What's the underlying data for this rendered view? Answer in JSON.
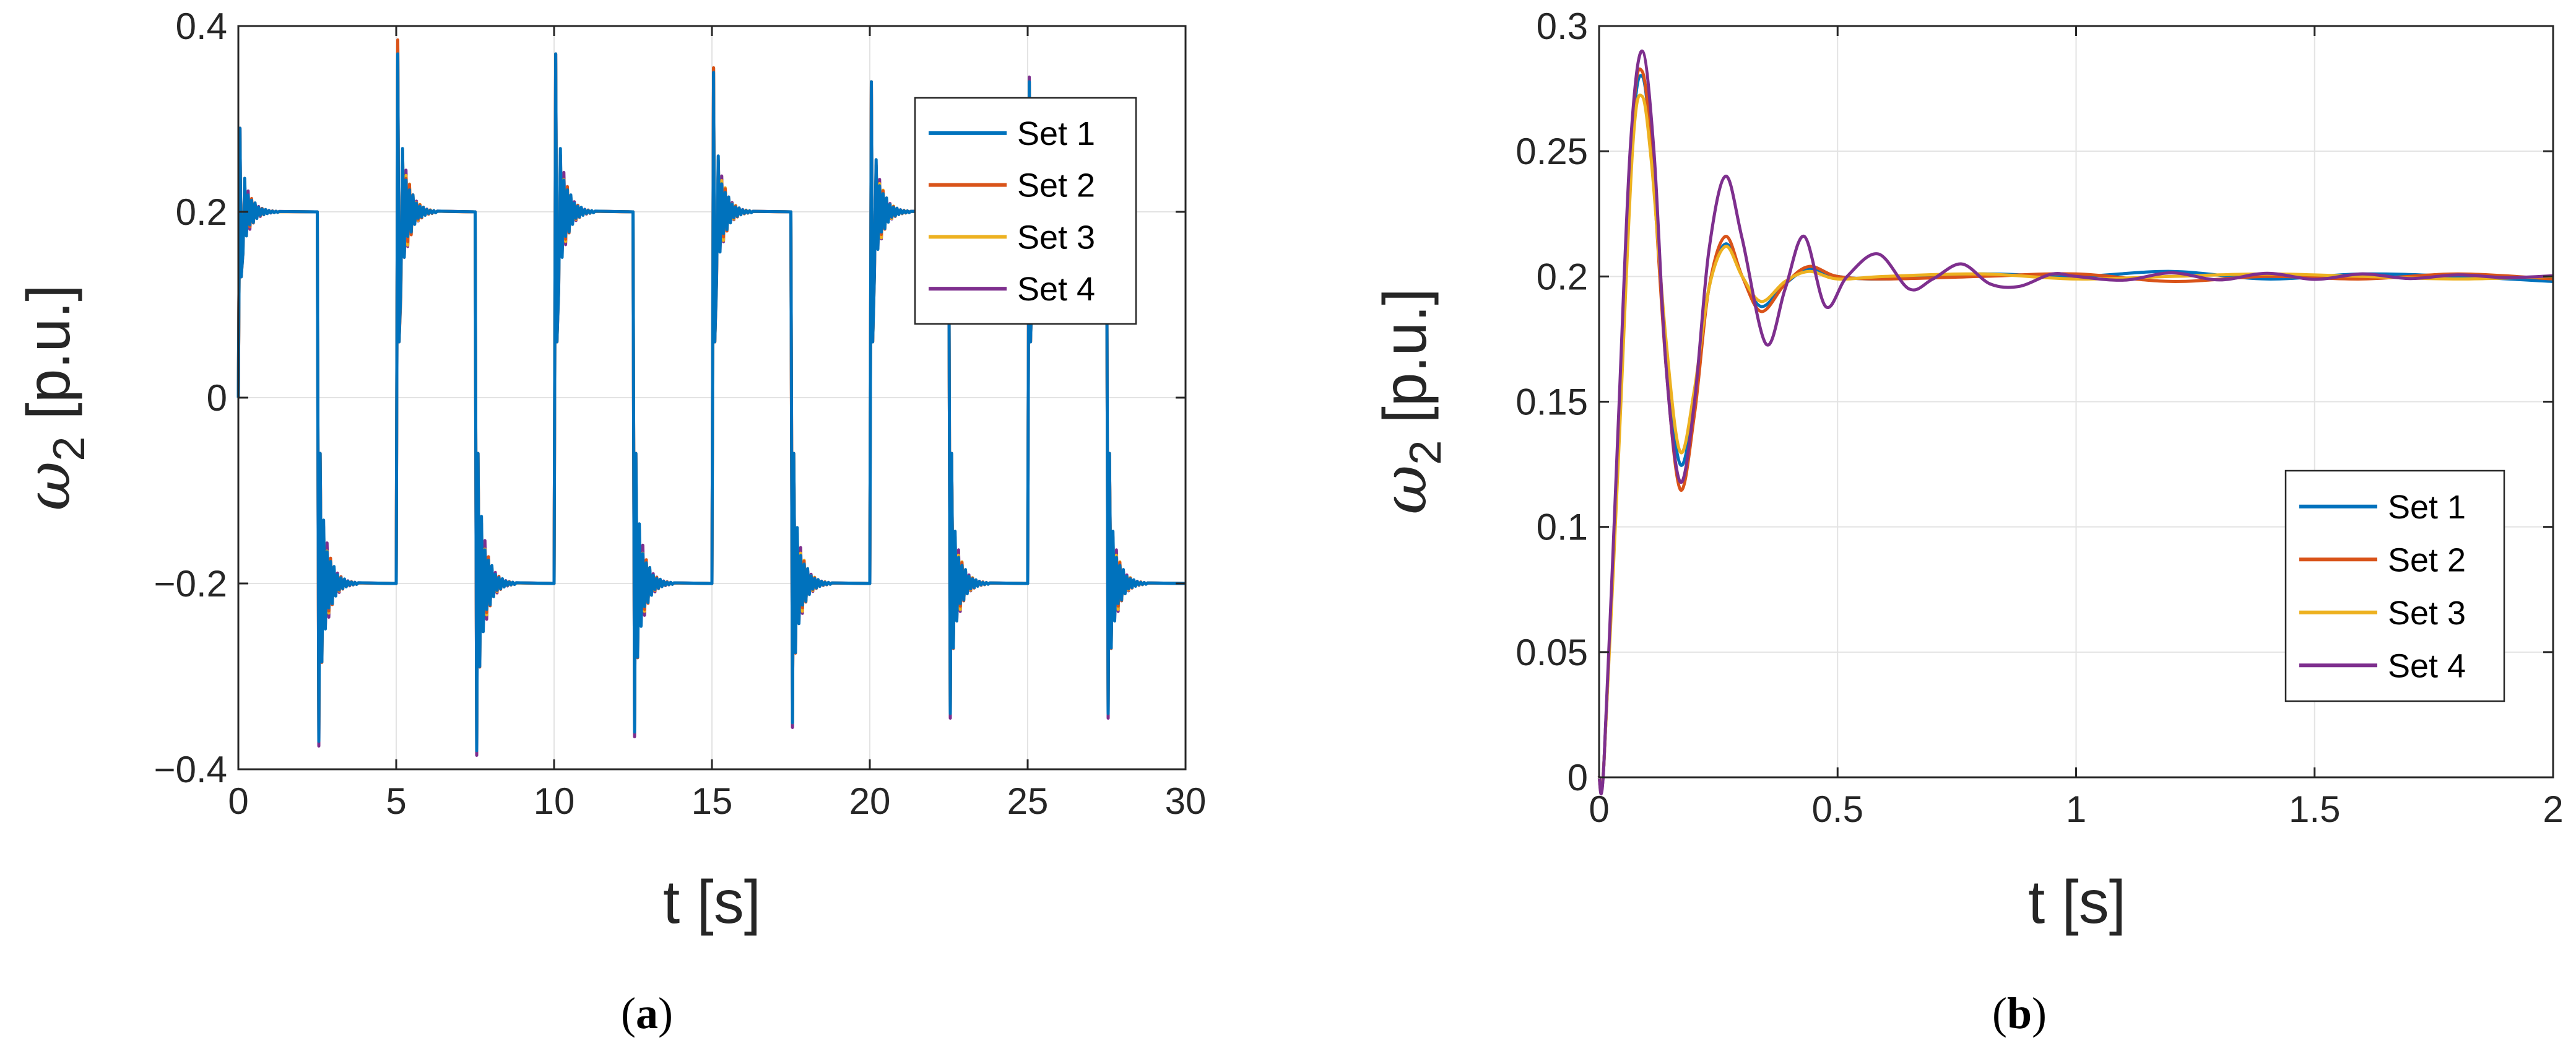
{
  "colors": {
    "series": [
      "#0072BD",
      "#D95319",
      "#EDB120",
      "#7E2F8E"
    ],
    "grid": "#e3e3e3",
    "axis": "#262626"
  },
  "chart_data": [
    {
      "type": "line",
      "panel": "a",
      "caption": {
        "open": "(",
        "letter": "a",
        "close": ")"
      },
      "xlabel": "t [s]",
      "ylabel": {
        "symbol": "ω",
        "subscript": "2",
        "unit": "[p.u.]"
      },
      "xlim": [
        0,
        30
      ],
      "ylim": [
        -0.4,
        0.4
      ],
      "xticks": [
        0,
        5,
        10,
        15,
        20,
        25,
        30
      ],
      "xtick_labels": [
        "0",
        "5",
        "10",
        "15",
        "20",
        "25",
        "30"
      ],
      "yticks": [
        -0.4,
        -0.2,
        0,
        0.2,
        0.4
      ],
      "ytick_labels": [
        "−0.4",
        "−0.2",
        "0",
        "0.2",
        "0.4"
      ],
      "grid": true,
      "legend": {
        "placement": "top-right",
        "entries": [
          "Set 1",
          "Set 2",
          "Set 3",
          "Set 4"
        ]
      },
      "setpoint": {
        "high": 0.2,
        "low": -0.2,
        "half_period_s": 2.5
      },
      "switch_times": [
        0,
        2.5,
        5,
        7.5,
        10,
        12.5,
        15,
        17.5,
        20,
        22.5,
        25,
        27.5
      ],
      "peak_values": [
        [
          0.29,
          -0.37,
          0.37,
          -0.38,
          0.37,
          -0.36,
          0.35,
          -0.35,
          0.34,
          -0.34,
          0.34,
          -0.34
        ],
        [
          0.29,
          -0.37,
          0.385,
          -0.38,
          0.37,
          -0.36,
          0.355,
          -0.35,
          0.34,
          -0.34,
          0.34,
          -0.34
        ],
        [
          0.28,
          -0.36,
          0.38,
          -0.37,
          0.36,
          -0.35,
          0.355,
          -0.35,
          0.34,
          -0.34,
          0.34,
          -0.34
        ],
        [
          0.29,
          -0.375,
          0.38,
          -0.385,
          0.37,
          -0.365,
          0.355,
          -0.355,
          0.34,
          -0.345,
          0.345,
          -0.345
        ]
      ],
      "series": [
        {
          "name": "Set 1"
        },
        {
          "name": "Set 2"
        },
        {
          "name": "Set 3"
        },
        {
          "name": "Set 4"
        }
      ]
    },
    {
      "type": "line",
      "panel": "b",
      "caption": {
        "open": "(",
        "letter": "b",
        "close": ")"
      },
      "xlabel": "t [s]",
      "ylabel": {
        "symbol": "ω",
        "subscript": "2",
        "unit": "[p.u.]"
      },
      "xlim": [
        0,
        2
      ],
      "ylim": [
        0,
        0.3
      ],
      "xticks": [
        0,
        0.5,
        1,
        1.5,
        2
      ],
      "xtick_labels": [
        "0",
        "0.5",
        "1",
        "1.5",
        "2"
      ],
      "yticks": [
        0,
        0.05,
        0.1,
        0.15,
        0.2,
        0.25,
        0.3
      ],
      "ytick_labels": [
        "0",
        "0.05",
        "0.1",
        "0.15",
        "0.2",
        "0.25",
        "0.3"
      ],
      "grid": true,
      "legend": {
        "placement": "bottom-right",
        "entries": [
          "Set 1",
          "Set 2",
          "Set 3",
          "Set 4"
        ]
      },
      "series": [
        {
          "name": "Set 1",
          "x": [
            0,
            0.01,
            0.04,
            0.07,
            0.09,
            0.11,
            0.14,
            0.17,
            0.2,
            0.23,
            0.265,
            0.3,
            0.34,
            0.39,
            0.44,
            0.5,
            0.6,
            0.8,
            1.0,
            1.2,
            1.4,
            1.6,
            1.8,
            2.0
          ],
          "y": [
            0,
            0.005,
            0.13,
            0.255,
            0.28,
            0.25,
            0.17,
            0.125,
            0.15,
            0.195,
            0.213,
            0.2,
            0.188,
            0.197,
            0.203,
            0.2,
            0.199,
            0.201,
            0.2,
            0.202,
            0.199,
            0.201,
            0.2,
            0.198
          ]
        },
        {
          "name": "Set 2",
          "x": [
            0,
            0.01,
            0.04,
            0.07,
            0.09,
            0.11,
            0.14,
            0.17,
            0.2,
            0.23,
            0.265,
            0.3,
            0.34,
            0.39,
            0.44,
            0.5,
            0.6,
            0.8,
            1.0,
            1.2,
            1.4,
            1.6,
            1.8,
            2.0
          ],
          "y": [
            0,
            0.005,
            0.13,
            0.26,
            0.282,
            0.25,
            0.165,
            0.115,
            0.145,
            0.195,
            0.216,
            0.2,
            0.186,
            0.197,
            0.204,
            0.2,
            0.199,
            0.2,
            0.201,
            0.198,
            0.2,
            0.199,
            0.201,
            0.199
          ]
        },
        {
          "name": "Set 3",
          "x": [
            0,
            0.01,
            0.04,
            0.07,
            0.09,
            0.11,
            0.14,
            0.17,
            0.2,
            0.23,
            0.265,
            0.3,
            0.34,
            0.39,
            0.44,
            0.5,
            0.6,
            0.8,
            1.0,
            1.2,
            1.4,
            1.6,
            1.8,
            2.0
          ],
          "y": [
            0,
            0.005,
            0.125,
            0.25,
            0.272,
            0.245,
            0.175,
            0.13,
            0.155,
            0.195,
            0.212,
            0.2,
            0.19,
            0.198,
            0.202,
            0.199,
            0.2,
            0.201,
            0.199,
            0.2,
            0.201,
            0.2,
            0.199,
            0.2
          ]
        },
        {
          "name": "Set 4",
          "x": [
            0,
            0.01,
            0.04,
            0.065,
            0.09,
            0.115,
            0.14,
            0.17,
            0.2,
            0.23,
            0.265,
            0.3,
            0.35,
            0.39,
            0.43,
            0.475,
            0.52,
            0.585,
            0.65,
            0.7,
            0.76,
            0.82,
            0.88,
            0.95,
            1.0
          ],
          "y": [
            0,
            0.005,
            0.14,
            0.25,
            0.29,
            0.25,
            0.165,
            0.118,
            0.15,
            0.21,
            0.24,
            0.215,
            0.173,
            0.195,
            0.216,
            0.188,
            0.2,
            0.209,
            0.195,
            0.199,
            0.205,
            0.197,
            0.196,
            0.201,
            0.2
          ]
        }
      ]
    }
  ]
}
